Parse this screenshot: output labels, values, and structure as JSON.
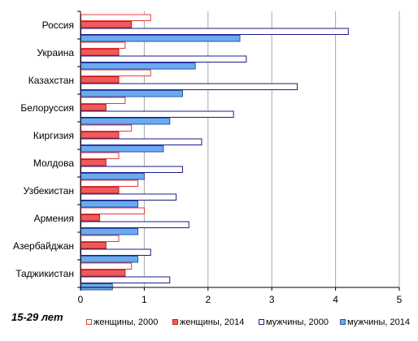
{
  "caption": "15-29 лет",
  "chart_data": {
    "type": "bar",
    "orientation": "horizontal",
    "categories": [
      "Россия",
      "Украина",
      "Казахстан",
      "Белоруссия",
      "Киргизия",
      "Молдова",
      "Узбекистан",
      "Армения",
      "Азербайджан",
      "Таджикистан"
    ],
    "series": [
      {
        "name": "женщины, 2000",
        "values": [
          1.1,
          0.7,
          1.1,
          0.7,
          0.8,
          0.6,
          0.9,
          1.0,
          0.6,
          0.8
        ],
        "fill": "#ffffff",
        "stroke": "#e8383a"
      },
      {
        "name": "женщины, 2014",
        "values": [
          0.8,
          0.6,
          0.6,
          0.4,
          0.6,
          0.4,
          0.6,
          0.3,
          0.4,
          0.7
        ],
        "fill": "#f05a5a",
        "stroke": "#c02020"
      },
      {
        "name": "мужчины, 2000",
        "values": [
          4.2,
          2.6,
          3.4,
          2.4,
          1.9,
          1.6,
          1.5,
          1.7,
          1.1,
          1.4
        ],
        "fill": "#ffffff",
        "stroke": "#1c1c8a"
      },
      {
        "name": "мужчины, 2014",
        "values": [
          2.5,
          1.8,
          1.6,
          1.4,
          1.3,
          1.0,
          0.9,
          0.9,
          0.9,
          0.5
        ],
        "fill": "#6aaaf0",
        "stroke": "#2b55a8"
      }
    ],
    "xlim": [
      0,
      5
    ],
    "xticks": [
      "0",
      "1",
      "2",
      "3",
      "4",
      "5"
    ],
    "grid": "vertical",
    "legend": "bottom"
  }
}
